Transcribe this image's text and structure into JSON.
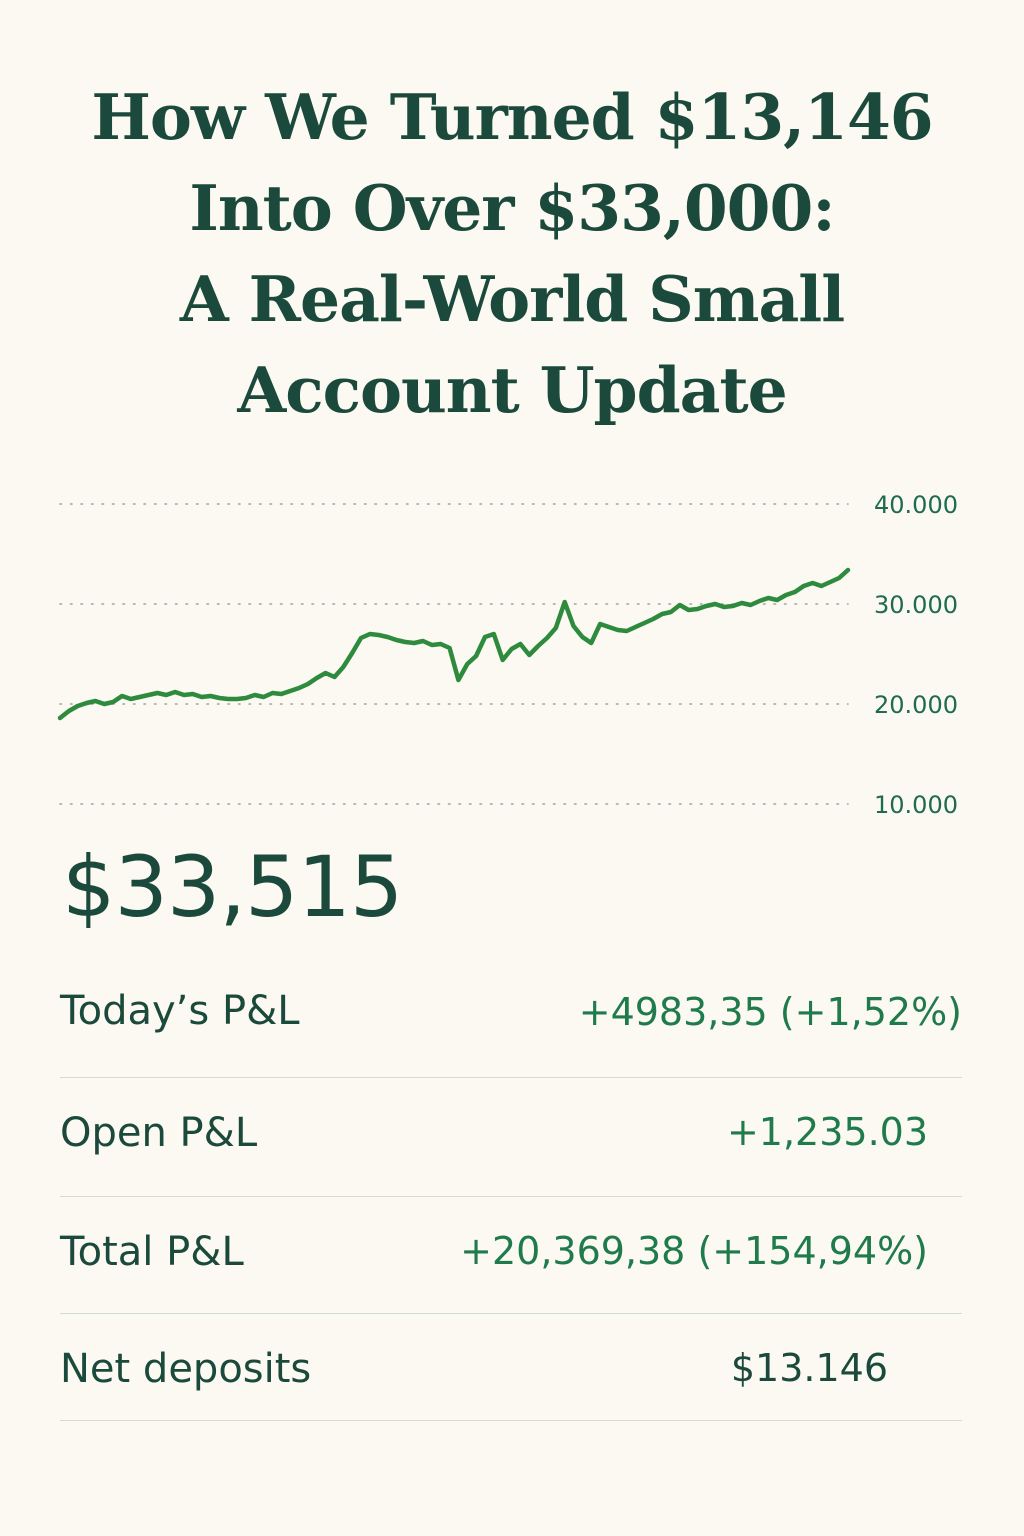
{
  "title_lines": [
    "How We Turned $13,146",
    "Into Over $33,000:",
    "A Real-World Small",
    "Account Update"
  ],
  "colors": {
    "background": "#fbf9f1",
    "heading": "#1b4a3c",
    "positive": "#1f7a4c",
    "line": "#2e8b3e",
    "grid": "#9aa89f"
  },
  "chart_data": {
    "type": "line",
    "title": "",
    "xlabel": "",
    "ylabel": "",
    "ylim": [
      10000,
      40000
    ],
    "yticks": [
      {
        "value": 40000,
        "label": "40.000"
      },
      {
        "value": 30000,
        "label": "30.000"
      },
      {
        "value": 20000,
        "label": "20.000"
      },
      {
        "value": 10000,
        "label": "10.000"
      }
    ],
    "grid": "horizontal dotted",
    "axis_position": "right",
    "series": [
      {
        "values": [
          18600,
          19300,
          19800,
          20100,
          20300,
          20000,
          20200,
          20800,
          20500,
          20700,
          20900,
          21100,
          20900,
          21200,
          20900,
          21000,
          20700,
          20800,
          20600,
          20500,
          20500,
          20600,
          20900,
          20700,
          21100,
          21000,
          21300,
          21600,
          22000,
          22600,
          23100,
          22700,
          23700,
          25100,
          26600,
          27000,
          26900,
          26700,
          26400,
          26200,
          26100,
          26300,
          25900,
          26000,
          25600,
          22400,
          24000,
          24800,
          26700,
          27000,
          24400,
          25500,
          26000,
          24900,
          25800,
          26600,
          27600,
          30200,
          27800,
          26700,
          26100,
          28000,
          27700,
          27400,
          27300,
          27700,
          28100,
          28500,
          29000,
          29200,
          29900,
          29400,
          29500,
          29800,
          30000,
          29700,
          29800,
          30100,
          29900,
          30300,
          30600,
          30400,
          30900,
          31200,
          31800,
          32100,
          31800,
          32200,
          32600,
          33400
        ]
      }
    ]
  },
  "balance": "$33,515",
  "stats": [
    {
      "label": "Today’s P&L",
      "value": "+4983,35 (+1,52%)"
    },
    {
      "label": "Open P&L",
      "value": "+1,235.03"
    },
    {
      "label": "Total P&L",
      "value": "+20,369,38 (+154,94%)"
    },
    {
      "label": "Net deposits",
      "value": "$13.146"
    }
  ]
}
